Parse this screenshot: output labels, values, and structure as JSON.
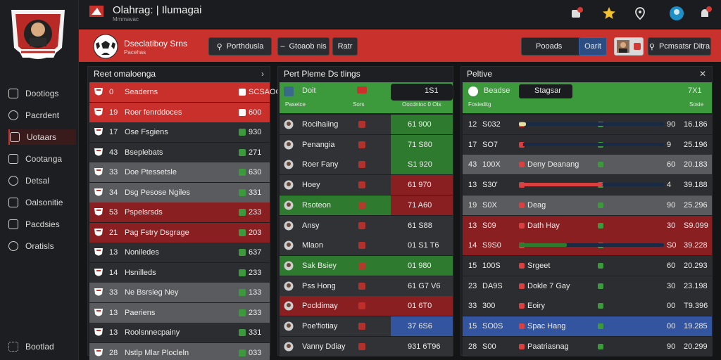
{
  "app": {
    "title": "Olahrag: | Ilumagai",
    "subtitle": "Mmmavac"
  },
  "sidebar": {
    "items": [
      {
        "label": "Dootiogs",
        "icon": "home-icon"
      },
      {
        "label": "Pacrdent",
        "icon": "chat-icon"
      },
      {
        "label": "Uotaars",
        "icon": "users-icon"
      },
      {
        "label": "Cootanga",
        "icon": "clock-icon"
      },
      {
        "label": "Detsal",
        "icon": "document-icon"
      },
      {
        "label": "Oalsonitie",
        "icon": "grid-icon"
      },
      {
        "label": "Pacdsies",
        "icon": "folder-icon"
      },
      {
        "label": "Oratisls",
        "icon": "settings-icon"
      }
    ],
    "footer": "Bootlad"
  },
  "header": {
    "team_name": "Dseclatiboy Srns",
    "team_sub": "Pacehas",
    "search1": "Porthdusla",
    "search2": "Gtoaob nis",
    "btn_small": "Ratr",
    "btn_dark1": "Pooads",
    "btn_accent": "Oarit",
    "btn_right": "Pcmsatsr Ditra"
  },
  "panel1": {
    "title": "Reet omaloenga",
    "rows": [
      {
        "num": "0",
        "name": "Seaderns",
        "val": "SCSAOO",
        "color": "#c9302c"
      },
      {
        "num": "19",
        "name": "Roer fenrddoces",
        "val": "600",
        "color": "#c9302c"
      },
      {
        "num": "17",
        "name": "Ose Fsgiens",
        "val": "930",
        "color": "#2b2d30"
      },
      {
        "num": "43",
        "name": "Bseplebats",
        "val": "271",
        "color": "#2b2d30"
      },
      {
        "num": "33",
        "name": "Doe Ptessetsle",
        "val": "630",
        "color": "#5a5b5f"
      },
      {
        "num": "34",
        "name": "Dsg Pesose Ngiles",
        "val": "331",
        "color": "#5a5b5f"
      },
      {
        "num": "53",
        "name": "Pspelsrsds",
        "val": "233",
        "color": "#8a1f22"
      },
      {
        "num": "21",
        "name": "Pag Fstry Dsgrage",
        "val": "203",
        "color": "#8a1f22"
      },
      {
        "num": "13",
        "name": "Noniledes",
        "val": "637",
        "color": "#2b2d30"
      },
      {
        "num": "14",
        "name": "Hsnilleds",
        "val": "233",
        "color": "#2b2d30"
      },
      {
        "num": "33",
        "name": "Ne Bsrsieg Ney",
        "val": "133",
        "color": "#5a5b5f"
      },
      {
        "num": "13",
        "name": "Paeriens",
        "val": "233",
        "color": "#5a5b5f"
      },
      {
        "num": "13",
        "name": "Roolsnnecpainy",
        "val": "331",
        "color": "#2b2d30"
      },
      {
        "num": "28",
        "name": "Nstlp Mlar Plocleln",
        "val": "033",
        "color": "#5a5b5f"
      }
    ]
  },
  "panel2": {
    "title": "Pert Pleme Ds tlings",
    "head": {
      "name": "Doit",
      "score": "1S1",
      "sub_left": "Pasetce",
      "sub_mid": "Sors",
      "sub_right": "Oocdntoc 0 Ots"
    },
    "rows": [
      {
        "name": "Rocihaiing",
        "score": "61 900",
        "left": "#303235",
        "right": "#2e7a2e"
      },
      {
        "name": "Penangia",
        "score": "71 S80",
        "left": "#303235",
        "right": "#2e7a2e"
      },
      {
        "name": "Roer Fany",
        "score": "S1 920",
        "left": "#303235",
        "right": "#2e7a2e"
      },
      {
        "name": "Hoey",
        "score": "61 970",
        "left": "#303235",
        "right": "#8a1f22"
      },
      {
        "name": "Rsoteon",
        "score": "71 A60",
        "left": "#2e7a2e",
        "right": "#8a1f22"
      },
      {
        "name": "Ansy",
        "score": "61 S88",
        "left": "#303235",
        "right": "#303235"
      },
      {
        "name": "Mlaon",
        "score": "01 S1 T6",
        "left": "#303235",
        "right": "#303235"
      },
      {
        "name": "Sak Bsiey",
        "score": "01 980",
        "left": "#2e7a2e",
        "right": "#2e7a2e"
      },
      {
        "name": "Pss Hong",
        "score": "61 G7 V6",
        "left": "#303235",
        "right": "#303235"
      },
      {
        "name": "Pocldimay",
        "score": "01 6T0",
        "left": "#8a1f22",
        "right": "#8a1f22"
      },
      {
        "name": "Poe'fiotiay",
        "score": "37 6S6",
        "left": "#303235",
        "right": "#3355a0"
      },
      {
        "name": "Vanny Ddiay",
        "score": "931 6T96",
        "left": "#303235",
        "right": "#303235"
      }
    ]
  },
  "panel3": {
    "title": "Peltive",
    "head": {
      "label": "Beadse",
      "mid": "Stagsar",
      "val": "7X1",
      "sub": "Fosieditg",
      "sub_right": "Sosie"
    },
    "rows": [
      {
        "rank": "12",
        "code": "S032",
        "label": "",
        "right": "90",
        "total": "16.186",
        "bar": 0.05,
        "barcolor": "#e8e0a0",
        "color": "#2b2d30"
      },
      {
        "rank": "17",
        "code": "SO7",
        "label": "",
        "right": "9",
        "total": "25.196",
        "bar": 0.03,
        "barcolor": "#d94040",
        "color": "#2b2d30"
      },
      {
        "rank": "43",
        "code": "100X",
        "label": "Deny Deanang",
        "right": "60",
        "total": "20.183",
        "bar": 0,
        "barcolor": "#3a8a3a",
        "color": "#5a5b5f"
      },
      {
        "rank": "13",
        "code": "S30'",
        "label": "",
        "right": "4",
        "total": "39.188",
        "bar": 0.58,
        "barcolor": "#d94040",
        "color": "#2b2d30"
      },
      {
        "rank": "19",
        "code": "S0X",
        "label": "Deag",
        "right": "90",
        "total": "25.296",
        "bar": 0,
        "barcolor": "#3a8a3a",
        "color": "#5a5b5f"
      },
      {
        "rank": "13",
        "code": "S09",
        "label": "Dath Hay",
        "right": "30",
        "total": "S9.099",
        "bar": 0,
        "barcolor": "#3a8a3a",
        "color": "#8a1f22"
      },
      {
        "rank": "14",
        "code": "S9S0",
        "label": "",
        "right": "S0",
        "total": "39.228",
        "bar": 0.33,
        "barcolor": "#2e7a2e",
        "color": "#8a1f22"
      },
      {
        "rank": "15",
        "code": "100S",
        "label": "Srgeet",
        "right": "60",
        "total": "20.293",
        "bar": 0,
        "barcolor": "#3a8a3a",
        "color": "#2b2d30"
      },
      {
        "rank": "23",
        "code": "DA9S",
        "label": "Dokle 7 Gay",
        "right": "30",
        "total": "23.198",
        "bar": 0,
        "barcolor": "#3a8a3a",
        "color": "#2b2d30"
      },
      {
        "rank": "33",
        "code": "300",
        "label": "Eoiry",
        "right": "00",
        "total": "T9.396",
        "bar": 0,
        "barcolor": "#3a8a3a",
        "color": "#2b2d30"
      },
      {
        "rank": "15",
        "code": "SO0S",
        "label": "Spac Hang",
        "right": "00",
        "total": "19.285",
        "bar": 0,
        "barcolor": "#3a8a3a",
        "color": "#3355a0"
      },
      {
        "rank": "28",
        "code": "S00",
        "label": "Paatriasnag",
        "right": "90",
        "total": "20.299",
        "bar": 0,
        "barcolor": "#3a8a3a",
        "color": "#2b2d30"
      }
    ]
  },
  "colors": {
    "accent": "#c8312c",
    "green": "#2e7a2e",
    "dark": "#1e1f22"
  }
}
